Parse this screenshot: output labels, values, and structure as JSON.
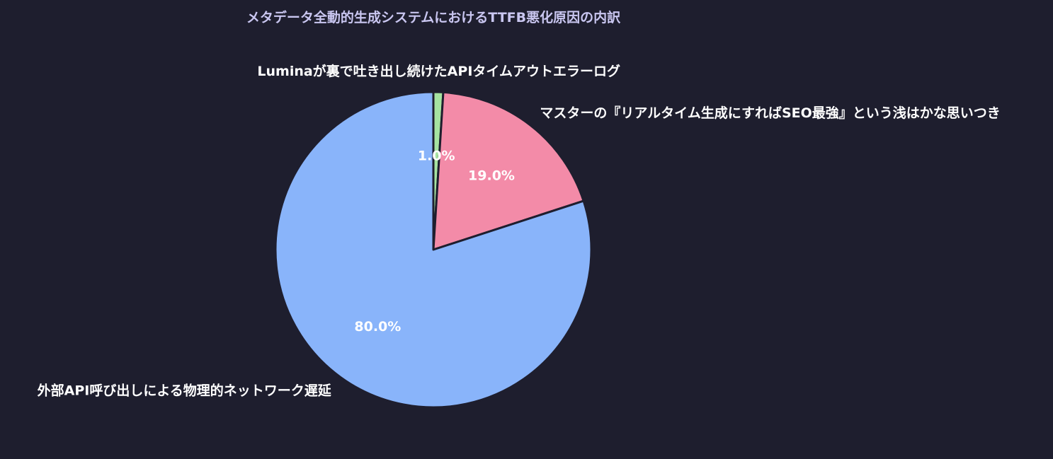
{
  "chart_data": {
    "type": "pie",
    "title": "メタデータ全動的生成システムにおけるTTFB悪化原因の内訳",
    "slices": [
      {
        "label": "Luminaが裏で吐き出し続けたAPIタイムアウトエラーログ",
        "value": 1.0,
        "pct_label": "1.0%",
        "color": "#a6e3a1"
      },
      {
        "label": "マスターの『リアルタイム生成にすればSEO最強』という浅はかな思いつき",
        "value": 19.0,
        "pct_label": "19.0%",
        "color": "#f38ba8"
      },
      {
        "label": "外部API呼び出しによる物理的ネットワーク遅延",
        "value": 80.0,
        "pct_label": "80.0%",
        "color": "#89b4fa"
      }
    ],
    "start_angle": "top",
    "direction": "clockwise",
    "legend": "none"
  }
}
